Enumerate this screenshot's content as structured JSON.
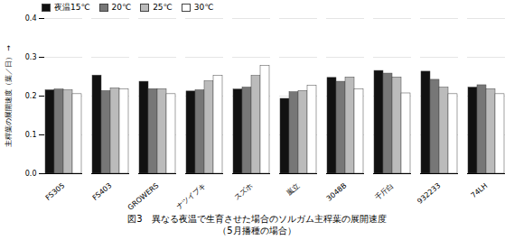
{
  "chart_data": {
    "type": "bar",
    "title": "図3　異なる夜温で生育させた場合のソルガム主稈葉の展開速度",
    "subtitle": "（5月播種の場合）",
    "categories": [
      "FS305",
      "FS403",
      "GROWERS",
      "ナツイブキ",
      "スズホ",
      "嵐立",
      "3048B",
      "千斤白",
      "932233",
      "74LH"
    ],
    "series": [
      {
        "name": "夜温15℃",
        "color": "#111111",
        "values": [
          0.215,
          0.253,
          0.237,
          0.212,
          0.217,
          0.193,
          0.247,
          0.265,
          0.263,
          0.222
        ]
      },
      {
        "name": "20℃",
        "color": "#777777",
        "values": [
          0.217,
          0.213,
          0.218,
          0.215,
          0.222,
          0.21,
          0.237,
          0.258,
          0.242,
          0.228
        ]
      },
      {
        "name": "25℃",
        "color": "#bbbbbb",
        "values": [
          0.215,
          0.22,
          0.218,
          0.238,
          0.252,
          0.213,
          0.248,
          0.248,
          0.222,
          0.218
        ]
      },
      {
        "name": "30℃",
        "color": "#ffffff",
        "values": [
          0.205,
          0.218,
          0.205,
          0.252,
          0.278,
          0.227,
          0.218,
          0.207,
          0.205,
          0.205
        ]
      }
    ],
    "y_label": "主稈葉の展開速度（葉／日）",
    "ylim": [
      0.0,
      0.4
    ],
    "yticks": [
      {
        "value": 0.0,
        "label": "0.0"
      },
      0.1,
      0.2,
      0.3,
      0.4
    ],
    "grid": true,
    "legend": "upper left"
  }
}
